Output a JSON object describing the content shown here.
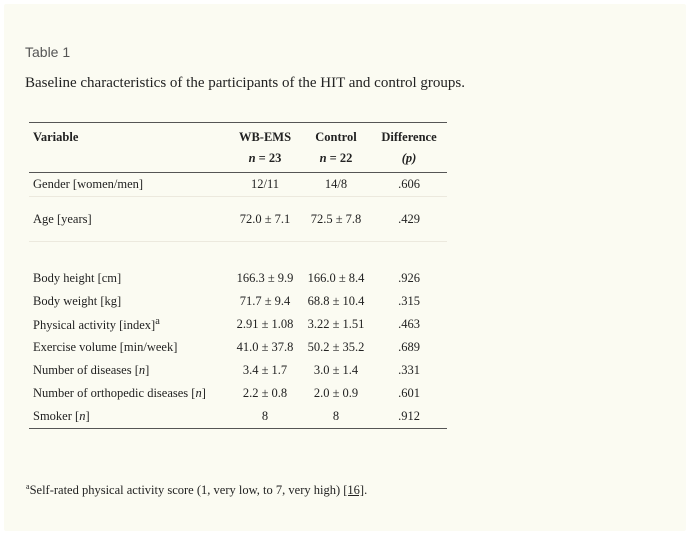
{
  "table_label": "Table 1",
  "caption": "Baseline characteristics of the participants of the HIT and control groups.",
  "columns": {
    "variable": "Variable",
    "wbems": "WB-EMS",
    "control": "Control",
    "difference": "Difference",
    "wbems_n_prefix": "n",
    "wbems_n_value": " = 23",
    "control_n_prefix": "n",
    "control_n_value": " = 22",
    "difference_sub": "(p)"
  },
  "rows": [
    {
      "label": "Gender [women/men]",
      "wbems": "12/11",
      "control": "14/8",
      "p": ".606"
    },
    {
      "label": "Age [years]",
      "wbems": "72.0 ± 7.1",
      "control": "72.5 ± 7.8",
      "p": ".429"
    },
    {
      "label": "Body height [cm]",
      "wbems": "166.3 ± 9.9",
      "control": "166.0 ± 8.4",
      "p": ".926"
    },
    {
      "label": "Body weight [kg]",
      "wbems": "71.7 ± 9.4",
      "control": "68.8 ± 10.4",
      "p": ".315"
    },
    {
      "label": "Physical activity [index]",
      "label_sup": "a",
      "wbems": "2.91 ± 1.08",
      "control": "3.22 ± 1.51",
      "p": ".463"
    },
    {
      "label": "Exercise volume [min/week]",
      "wbems": "41.0 ± 37.8",
      "control": "50.2 ± 35.2",
      "p": ".689"
    },
    {
      "label_pre": "Number of diseases [",
      "label_ital": "n",
      "label_post": "]",
      "wbems": "3.4 ± 1.7",
      "control": "3.0 ± 1.4",
      "p": ".331"
    },
    {
      "label_pre": "Number of orthopedic diseases [",
      "label_ital": "n",
      "label_post": "]",
      "wbems": "2.2 ± 0.8",
      "control": "2.0 ± 0.9",
      "p": ".601"
    },
    {
      "label_pre": "Smoker [",
      "label_ital": "n",
      "label_post": "]",
      "wbems": "8",
      "control": "8",
      "p": ".912"
    }
  ],
  "footnote": {
    "marker": "a",
    "text": "Self-rated physical activity score (1, very low, to 7, very high) ",
    "ref": "[16]",
    "end": "."
  }
}
